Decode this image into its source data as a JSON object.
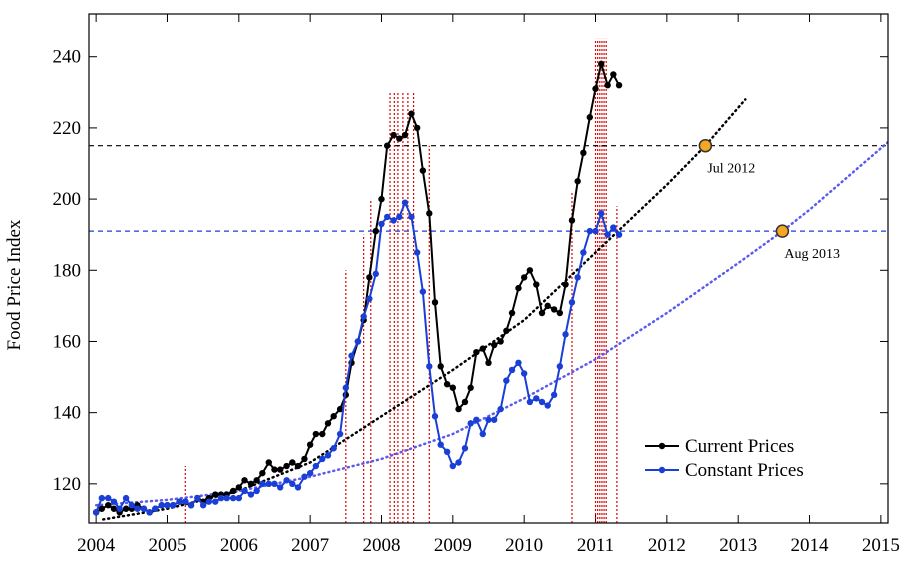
{
  "chart_data": {
    "type": "line",
    "ylabel": "Food Price Index",
    "xlim": [
      2003.9,
      2015.1
    ],
    "ylim": [
      109,
      252
    ],
    "xticks": [
      2004,
      2005,
      2006,
      2007,
      2008,
      2009,
      2010,
      2011,
      2012,
      2013,
      2014,
      2015
    ],
    "yticks": [
      120,
      140,
      160,
      180,
      200,
      220,
      240
    ],
    "legend": "lower right",
    "x": [
      2004,
      2004.08,
      2004.17,
      2004.25,
      2004.33,
      2004.42,
      2004.5,
      2004.58,
      2004.67,
      2004.75,
      2004.83,
      2004.92,
      2005,
      2005.08,
      2005.17,
      2005.25,
      2005.33,
      2005.42,
      2005.5,
      2005.58,
      2005.67,
      2005.75,
      2005.83,
      2005.92,
      2006,
      2006.08,
      2006.17,
      2006.25,
      2006.33,
      2006.42,
      2006.5,
      2006.58,
      2006.67,
      2006.75,
      2006.83,
      2006.92,
      2007,
      2007.08,
      2007.17,
      2007.25,
      2007.33,
      2007.42,
      2007.5,
      2007.58,
      2007.67,
      2007.75,
      2007.83,
      2007.92,
      2008,
      2008.08,
      2008.17,
      2008.25,
      2008.33,
      2008.42,
      2008.5,
      2008.58,
      2008.67,
      2008.75,
      2008.83,
      2008.92,
      2009,
      2009.08,
      2009.17,
      2009.25,
      2009.33,
      2009.42,
      2009.5,
      2009.58,
      2009.67,
      2009.75,
      2009.83,
      2009.92,
      2010,
      2010.08,
      2010.17,
      2010.25,
      2010.33,
      2010.42,
      2010.5,
      2010.58,
      2010.67,
      2010.75,
      2010.83,
      2010.92,
      2011,
      2011.08,
      2011.17,
      2011.25,
      2011.33
    ],
    "series": [
      {
        "name": "Current Prices",
        "color": "#000000",
        "values": [
          112,
          113,
          114,
          113,
          112,
          113,
          113,
          114,
          113,
          112,
          113,
          114,
          114,
          114,
          115,
          115,
          114,
          116,
          115,
          116,
          117,
          117,
          117,
          118,
          119,
          121,
          120,
          121,
          123,
          126,
          124,
          124,
          125,
          126,
          125,
          127,
          131,
          134,
          134,
          137,
          139,
          141,
          145,
          154,
          160,
          166,
          178,
          191,
          200,
          215,
          218,
          217,
          218,
          224,
          220,
          208,
          196,
          171,
          153,
          148,
          147,
          141,
          143,
          147,
          157,
          158,
          154,
          159,
          160,
          163,
          168,
          175,
          178,
          180,
          176,
          168,
          170,
          169,
          168,
          176,
          194,
          205,
          213,
          223,
          231,
          238,
          232,
          235,
          232
        ]
      },
      {
        "name": "Constant Prices",
        "color": "#1a3fd6",
        "values": [
          112,
          116,
          116,
          115,
          113,
          116,
          114,
          113,
          113,
          112,
          113,
          114,
          114,
          114,
          115,
          115,
          114,
          116,
          114,
          115,
          115,
          116,
          116,
          116,
          116,
          118,
          117,
          118,
          120,
          120,
          120,
          119,
          121,
          120,
          119,
          122,
          123,
          125,
          127,
          128,
          130,
          134,
          147,
          156,
          160,
          167,
          172,
          179,
          193,
          195,
          194,
          195,
          199,
          195,
          185,
          174,
          153,
          139,
          131,
          129,
          125,
          126,
          130,
          137,
          138,
          134,
          138,
          138,
          141,
          149,
          152,
          154,
          151,
          143,
          144,
          143,
          142,
          145,
          153,
          162,
          171,
          178,
          185,
          191,
          191,
          196,
          190,
          192,
          190
        ]
      }
    ],
    "trends": [
      {
        "color": "#000000",
        "x": [
          2004.1,
          2005,
          2006,
          2007,
          2008,
          2009,
          2010,
          2011,
          2012,
          2012.54,
          2013.1
        ],
        "values": [
          110,
          113,
          118,
          126,
          139,
          152,
          166,
          185,
          204,
          215,
          228
        ]
      },
      {
        "color": "#5a5af0",
        "x": [
          2004,
          2005,
          2006,
          2007,
          2008,
          2009,
          2010,
          2011,
          2012,
          2013,
          2013.62,
          2014,
          2015.1
        ],
        "values": [
          114,
          115.5,
          118,
          122,
          127,
          134,
          144,
          155,
          168,
          182,
          191,
          197,
          216
        ]
      }
    ],
    "hlines": [
      {
        "value": 215,
        "color": "#000000"
      },
      {
        "value": 191,
        "color": "#1a3fd6"
      }
    ],
    "targets": [
      {
        "x": 2012.54,
        "y": 215,
        "label": "Jul 2012"
      },
      {
        "x": 2013.62,
        "y": 191,
        "label": "Aug 2013"
      }
    ],
    "events": {
      "color": "#e00000",
      "x": [
        2005.25,
        2007.5,
        2007.75,
        2007.85,
        2008.12,
        2008.18,
        2008.23,
        2008.3,
        2008.37,
        2008.45,
        2008.67,
        2010.67,
        2011,
        2011.03,
        2011.06,
        2011.09,
        2011.12,
        2011.15,
        2011.3
      ],
      "top": [
        125,
        180,
        190,
        200,
        230,
        230,
        230,
        230,
        230,
        230,
        215,
        202,
        245,
        245,
        245,
        245,
        245,
        245,
        198
      ]
    }
  }
}
